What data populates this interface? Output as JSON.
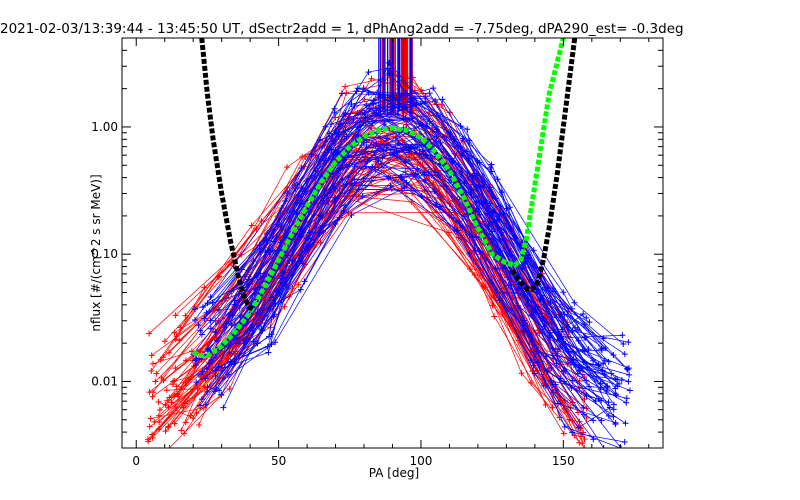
{
  "chart_data": {
    "type": "line",
    "title": "2021-02-03/13:39:44 - 13:45:50 UT, dSectr2add = 1, dPhAng2add = -7.75deg, dPA290_est=  -0.3deg",
    "xlabel": "PA [deg]",
    "ylabel": "nflux [#/(cm^2 s sr MeV)]",
    "xlim": [
      -5,
      185
    ],
    "ylim": [
      0.003,
      5.0
    ],
    "yscale": "log",
    "xticks": [
      0,
      50,
      100,
      150
    ],
    "xtick_labels": [
      "0",
      "50",
      "100",
      "150"
    ],
    "yticks": [
      0.01,
      0.1,
      1.0
    ],
    "ytick_labels": [
      "0.01",
      "0.10",
      "1.00"
    ],
    "grid": false,
    "legend": "none",
    "colors": {
      "red_traces": "#ff0000",
      "blue_traces": "#0000ff",
      "fit_green": "#00ff00",
      "fit_black": "#000000"
    },
    "series": [
      {
        "color": "#ff0000",
        "style": "dense-line-plus",
        "envelope_x": [
          4,
          20,
          40,
          60,
          75,
          90,
          105,
          120,
          135,
          150,
          160
        ],
        "envelope_y": [
          0.008,
          0.012,
          0.05,
          0.25,
          0.7,
          1.05,
          0.65,
          0.18,
          0.04,
          0.012,
          0.006
        ]
      },
      {
        "color": "#0000ff",
        "style": "dense-line-plus",
        "envelope_x": [
          20,
          30,
          40,
          50,
          60,
          70,
          80,
          90,
          100,
          110,
          120,
          130,
          140,
          150,
          165,
          175
        ],
        "envelope_y": [
          0.012,
          0.018,
          0.03,
          0.07,
          0.2,
          0.5,
          0.85,
          0.98,
          0.8,
          0.5,
          0.25,
          0.1,
          0.035,
          0.014,
          0.009,
          0.008
        ]
      },
      {
        "color": "#00ff00",
        "style": "thick-dashed-fit",
        "x": [
          20,
          22,
          25,
          30,
          35,
          40,
          45,
          50,
          55,
          60,
          65,
          70,
          75,
          80,
          85,
          90,
          95,
          100,
          105,
          110,
          115,
          120,
          125,
          130,
          133,
          135,
          137,
          140,
          145,
          150
        ],
        "y": [
          0.017,
          0.016,
          0.016,
          0.019,
          0.025,
          0.035,
          0.055,
          0.09,
          0.15,
          0.24,
          0.37,
          0.53,
          0.7,
          0.84,
          0.94,
          0.98,
          0.94,
          0.82,
          0.64,
          0.45,
          0.28,
          0.16,
          0.1,
          0.085,
          0.082,
          0.09,
          0.13,
          0.35,
          1.8,
          5.0
        ]
      },
      {
        "color": "#000000",
        "style": "thick-dashed-fit",
        "x": [
          23,
          25,
          27,
          30,
          33,
          36,
          38,
          40,
          41
        ],
        "y": [
          5.0,
          1.8,
          0.8,
          0.3,
          0.13,
          0.065,
          0.045,
          0.038,
          0.037
        ]
      },
      {
        "color": "#000000",
        "style": "thick-dashed-fit",
        "x": [
          132,
          135,
          137,
          139,
          141,
          143,
          145,
          148,
          151,
          154
        ],
        "y": [
          0.075,
          0.06,
          0.054,
          0.053,
          0.06,
          0.09,
          0.16,
          0.45,
          1.5,
          5.0
        ]
      }
    ]
  }
}
